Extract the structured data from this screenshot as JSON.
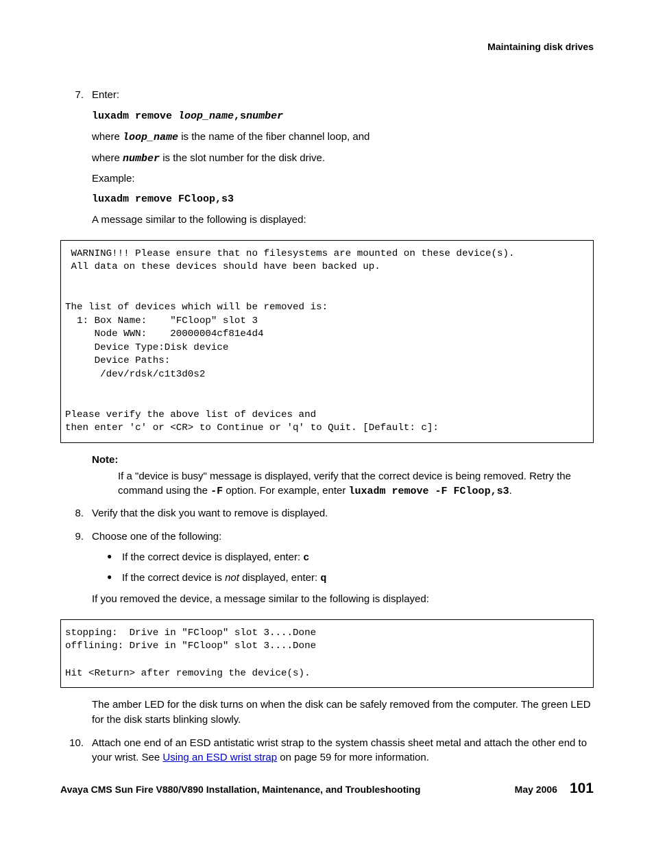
{
  "header": {
    "text": "Maintaining disk drives"
  },
  "steps": {
    "s7": {
      "num": "7.",
      "label": "Enter:",
      "cmd_prefix": "luxadm remove ",
      "cmd_arg1": "loop_name",
      "cmd_sep": ",s",
      "cmd_arg2": "number",
      "where1_pre": "where ",
      "where1_var": "loop_name",
      "where1_post": " is the name of the fiber channel loop, and",
      "where2_pre": "where ",
      "where2_var": "number",
      "where2_post": " is the slot number for the disk drive.",
      "example_label": "Example:",
      "example_cmd": "luxadm remove FCloop,s3",
      "msg_intro": "A message similar to the following is displayed:"
    },
    "code1": " WARNING!!! Please ensure that no filesystems are mounted on these device(s).\n All data on these devices should have been backed up.\n\n\nThe list of devices which will be removed is:\n  1: Box Name:    \"FCloop\" slot 3\n     Node WWN:    20000004cf81e4d4\n     Device Type:Disk device\n     Device Paths:\n      /dev/rdsk/c1t3d0s2\n\n\nPlease verify the above list of devices and\nthen enter 'c' or <CR> to Continue or 'q' to Quit. [Default: c]:",
    "note": {
      "label": "Note:",
      "text_pre": "If a \"device is busy\" message is displayed, verify that the correct device is being removed. Retry the command using the ",
      "opt": "-F",
      "text_mid": " option. For example, enter ",
      "cmd": "luxadm remove -F FCloop,s3",
      "text_post": "."
    },
    "s8": {
      "num": "8.",
      "text": "Verify that the disk you want to remove is displayed."
    },
    "s9": {
      "num": "9.",
      "text": "Choose one of the following:",
      "b1_pre": "If the correct device is displayed, enter: ",
      "b1_cmd": "c",
      "b2_pre": "If the correct device is ",
      "b2_not": "not",
      "b2_post": " displayed, enter: ",
      "b2_cmd": "q",
      "after": "If you removed the device, a message similar to the following is displayed:"
    },
    "code2": "stopping:  Drive in \"FCloop\" slot 3....Done\noffliling: Drive in \"FCloop\" slot 3....Done\n\nHit <Return> after removing the device(s).",
    "code2_fixed": "stopping:  Drive in \"FCloop\" slot 3....Done\nofflining: Drive in \"FCloop\" slot 3....Done\n\nHit <Return> after removing the device(s).",
    "led_text": "The amber LED for the disk turns on when the disk can be safely removed from the computer. The green LED for the disk starts blinking slowly.",
    "s10": {
      "num": "10.",
      "pre": "Attach one end of an ESD antistatic wrist strap to the system chassis sheet metal and attach the other end to your wrist. See ",
      "link": "Using an ESD wrist strap",
      "post": " on page 59 for more information."
    }
  },
  "footer": {
    "title": "Avaya CMS Sun Fire V880/V890 Installation, Maintenance, and Troubleshooting",
    "date": "May 2006",
    "page": "101"
  },
  "colors": {
    "link": "#0000cc",
    "text": "#000000",
    "bg": "#ffffff",
    "border": "#000000"
  }
}
